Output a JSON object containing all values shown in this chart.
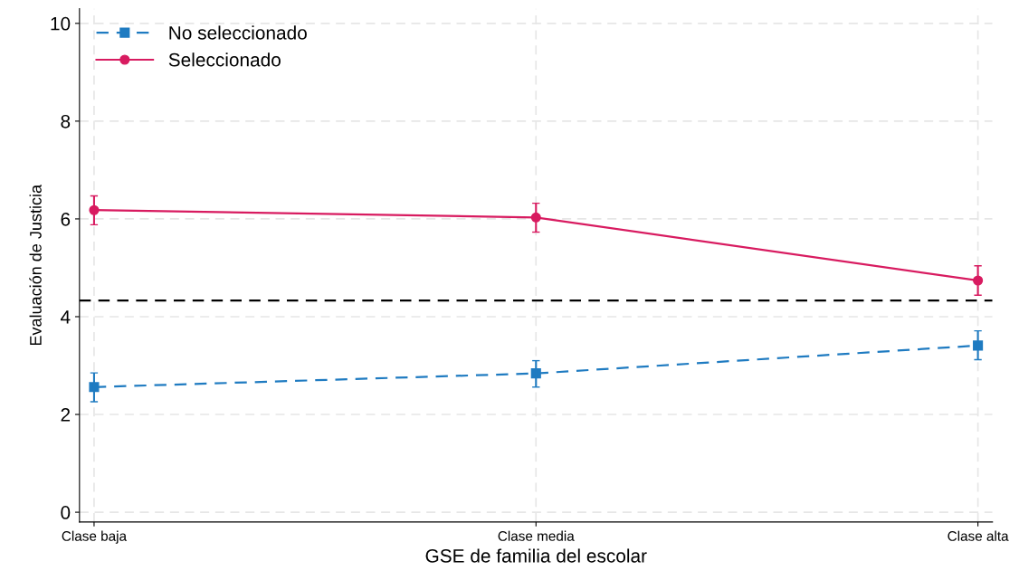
{
  "chart_data": {
    "type": "line",
    "xlabel": "GSE de familia del escolar",
    "ylabel": "Evaluación de Justicia",
    "categories": [
      "Clase baja",
      "Clase media",
      "Clase alta"
    ],
    "series": [
      {
        "name": "No seleccionado",
        "color": "#1f7bc1",
        "marker": "square",
        "line_style": "dashed",
        "values": [
          2.56,
          2.84,
          3.41
        ],
        "errors": [
          [
            2.26,
            2.85
          ],
          [
            2.56,
            3.1
          ],
          [
            3.12,
            3.71
          ]
        ]
      },
      {
        "name": "Seleccionado",
        "color": "#d81b60",
        "marker": "circle",
        "line_style": "solid",
        "values": [
          6.18,
          6.03,
          4.74
        ],
        "errors": [
          [
            5.88,
            6.47
          ],
          [
            5.73,
            6.32
          ],
          [
            4.44,
            5.04
          ]
        ]
      }
    ],
    "ylim": [
      -0.2,
      10.3
    ],
    "yticks": [
      0,
      2,
      4,
      6,
      8,
      10
    ],
    "ref_lines": [
      {
        "axis": "y",
        "value": 4.33,
        "color": "#000000",
        "line_style": "dashed"
      }
    ],
    "grid": true,
    "legend": "top left"
  }
}
